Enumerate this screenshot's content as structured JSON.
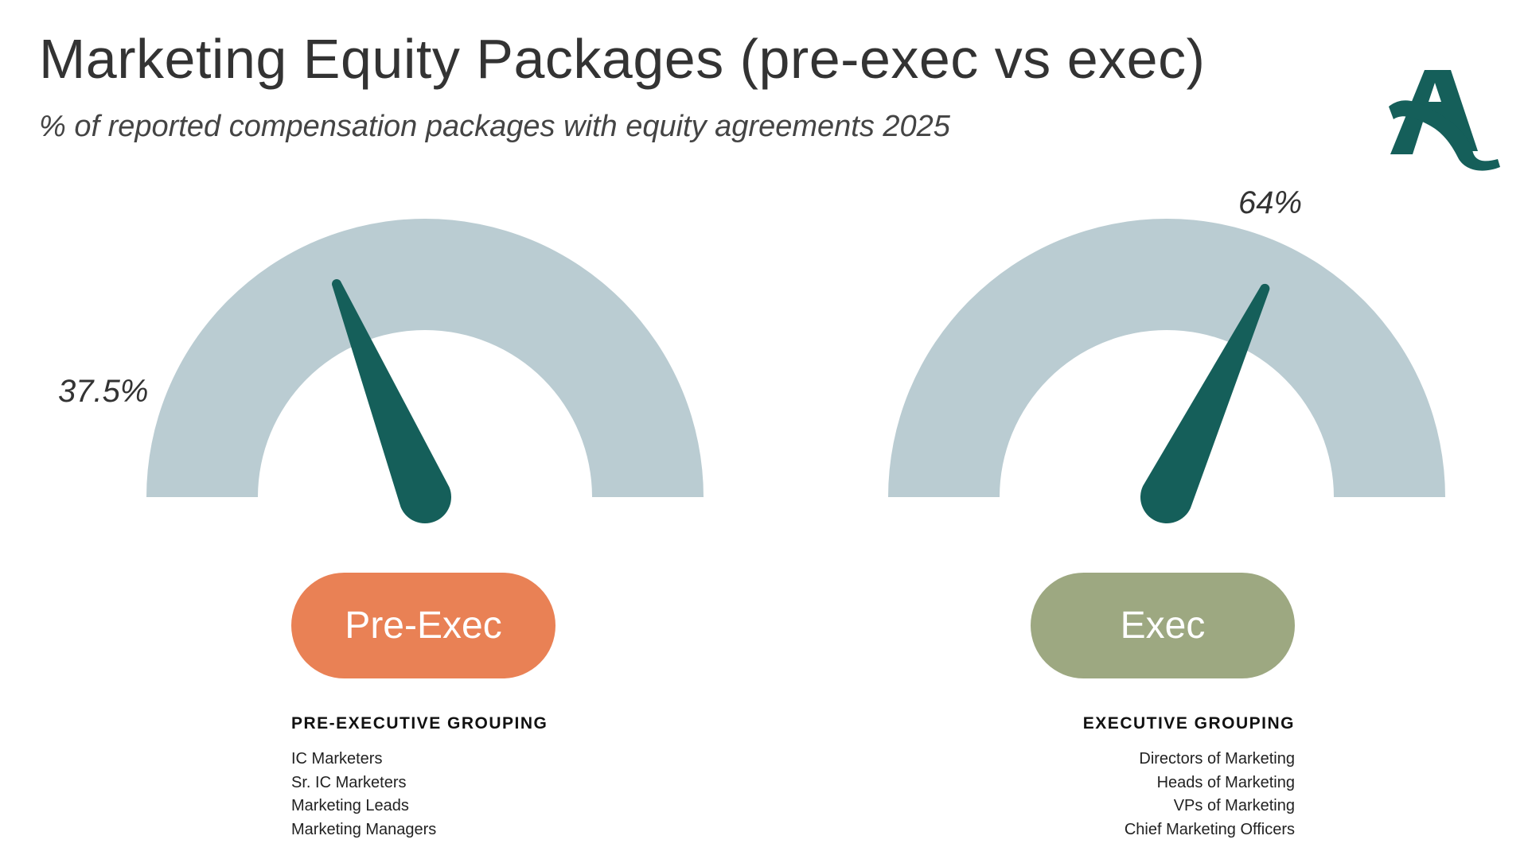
{
  "header": {
    "title": "Marketing Equity Packages (pre-exec vs exec)",
    "subtitle": "% of reported compensation packages with equity agreements 2025"
  },
  "logo": {
    "icon": "stylized-letter-a-logo",
    "color": "#155F5A"
  },
  "colors": {
    "gauge_track": "#BACCD2",
    "needle": "#155F5A",
    "pre_exec": "#E98155",
    "exec": "#9DA881"
  },
  "chart_data": [
    {
      "type": "gauge",
      "series_label": "Pre-Exec",
      "value": 37.5,
      "value_label": "37.5%",
      "range": [
        0,
        100
      ]
    },
    {
      "type": "gauge",
      "series_label": "Exec",
      "value": 64,
      "value_label": "64%",
      "range": [
        0,
        100
      ]
    }
  ],
  "groups": {
    "pre_exec": {
      "label": "Pre-Exec",
      "heading": "PRE-EXECUTIVE GROUPING",
      "items": [
        "IC Marketers",
        "Sr. IC Marketers",
        "Marketing Leads",
        "Marketing Managers"
      ]
    },
    "exec": {
      "label": "Exec",
      "heading": "EXECUTIVE GROUPING",
      "items": [
        "Directors of Marketing",
        "Heads of Marketing",
        "VPs of Marketing",
        "Chief Marketing Officers"
      ]
    }
  }
}
